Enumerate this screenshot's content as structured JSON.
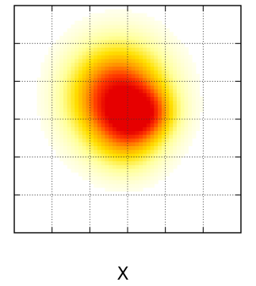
{
  "chart_data": {
    "type": "heatmap",
    "title": "",
    "xlabel": "X",
    "ylabel": "",
    "xlim": [
      0,
      6
    ],
    "ylim": [
      0,
      6
    ],
    "grid": true,
    "grid_style": "dotted",
    "tick_labels_shown": false,
    "colormap": [
      "#ffffff",
      "#ffff99",
      "#ffe000",
      "#ff9900",
      "#ff3a00",
      "#e60000"
    ],
    "blobs": [
      {
        "cx": 2.75,
        "cy": 3.6,
        "sx": 0.85,
        "sy": 0.9,
        "amp": 1.0
      },
      {
        "cx": 3.35,
        "cy": 3.15,
        "sx": 0.55,
        "sy": 0.45,
        "amp": 0.55
      },
      {
        "cx": 3.0,
        "cy": 2.4,
        "sx": 0.6,
        "sy": 0.6,
        "amp": 0.25
      }
    ]
  }
}
